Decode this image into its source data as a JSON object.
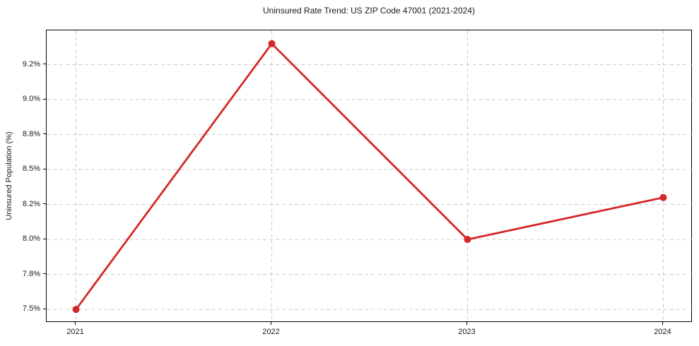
{
  "chart_data": {
    "type": "line",
    "title": "Uninsured Rate Trend: US ZIP Code 47001 (2021-2024)",
    "xlabel": "",
    "ylabel": "Uninsured Population (%)",
    "categories": [
      "2021",
      "2022",
      "2023",
      "2024"
    ],
    "values": [
      7.5,
      9.4,
      8.0,
      8.3
    ],
    "y_ticks": [
      7.5,
      7.75,
      8.0,
      8.25,
      8.5,
      8.75,
      9.0,
      9.25
    ],
    "y_tick_labels": [
      "7.5%",
      "7.8%",
      "8.0%",
      "8.2%",
      "8.5%",
      "8.8%",
      "9.0%",
      "9.2%"
    ],
    "ylim": [
      7.405,
      9.495
    ],
    "grid": true,
    "grid_style": "dashed",
    "legend_position": "none",
    "line_color": "#d62728",
    "marker": "circle",
    "grid_color": "#cccccc",
    "axis_color": "#000000",
    "text_color": "#1a1a1a",
    "background_color": "#ffffff"
  }
}
